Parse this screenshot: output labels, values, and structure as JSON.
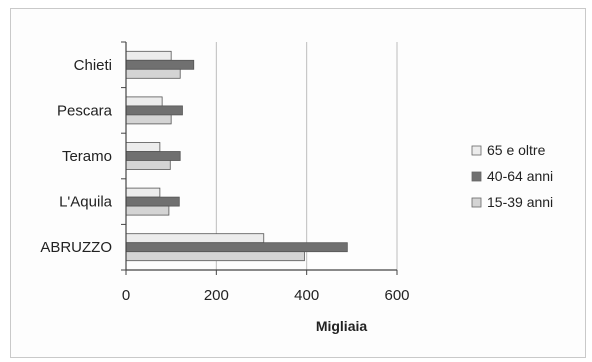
{
  "chart_data": {
    "type": "bar",
    "orientation": "horizontal",
    "categories": [
      "Chieti",
      "Pescara",
      "Teramo",
      "L'Aquila",
      "ABRUZZO"
    ],
    "series": [
      {
        "name": "65 e oltre",
        "values": [
          100,
          80,
          75,
          75,
          305
        ],
        "color": "#ececec"
      },
      {
        "name": "40-64 anni",
        "values": [
          150,
          125,
          120,
          118,
          490
        ],
        "color": "#707070"
      },
      {
        "name": "15-39 anni",
        "values": [
          120,
          100,
          98,
          95,
          395
        ],
        "color": "#d4d4d4"
      }
    ],
    "xlim": [
      0,
      600
    ],
    "xticks": [
      0,
      200,
      400,
      600
    ],
    "xlabel": "Migliaia",
    "ylabel": "",
    "title": "",
    "grid": "vertical",
    "legend": "right"
  }
}
